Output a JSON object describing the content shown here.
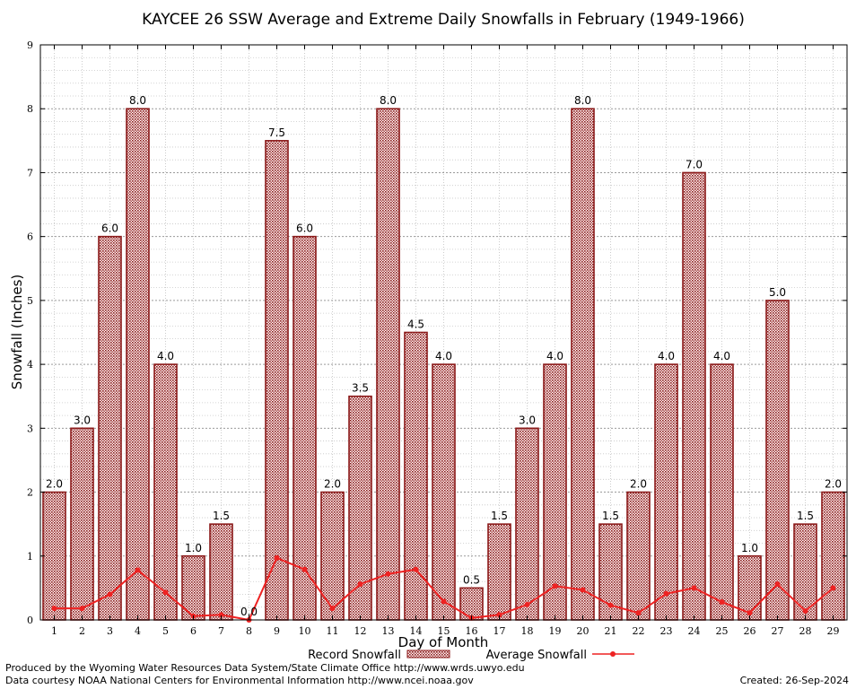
{
  "chart_data": {
    "type": "bar",
    "title": "KAYCEE 26 SSW Average and Extreme Daily Snowfalls in February (1949-1966)",
    "xlabel": "Day of Month",
    "ylabel": "Snowfall (Inches)",
    "ylim": [
      0,
      9
    ],
    "yticks": [
      0,
      1,
      2,
      3,
      4,
      5,
      6,
      7,
      8,
      9
    ],
    "categories": [
      "1",
      "2",
      "3",
      "4",
      "5",
      "6",
      "7",
      "8",
      "9",
      "10",
      "11",
      "12",
      "13",
      "14",
      "15",
      "16",
      "17",
      "18",
      "19",
      "20",
      "21",
      "22",
      "23",
      "24",
      "25",
      "26",
      "27",
      "28",
      "29"
    ],
    "series": [
      {
        "name": "Record Snowfall",
        "kind": "bar",
        "color": "#8b1a1a",
        "values": [
          2.0,
          3.0,
          6.0,
          8.0,
          4.0,
          1.0,
          1.5,
          0.0,
          7.5,
          6.0,
          2.0,
          3.5,
          8.0,
          4.5,
          4.0,
          0.5,
          1.5,
          3.0,
          4.0,
          8.0,
          1.5,
          2.0,
          4.0,
          7.0,
          4.0,
          1.0,
          5.0,
          1.5,
          2.0
        ],
        "labels": [
          "2.0",
          "3.0",
          "6.0",
          "8.0",
          "4.0",
          "1.0",
          "1.5",
          "0.0",
          "7.5",
          "6.0",
          "2.0",
          "3.5",
          "8.0",
          "4.5",
          "4.0",
          "0.5",
          "1.5",
          "3.0",
          "4.0",
          "8.0",
          "1.5",
          "2.0",
          "4.0",
          "7.0",
          "4.0",
          "1.0",
          "5.0",
          "1.5",
          "2.0"
        ]
      },
      {
        "name": "Average Snowfall",
        "kind": "line",
        "color": "#ee2222",
        "values": [
          0.18,
          0.18,
          0.4,
          0.78,
          0.43,
          0.06,
          0.08,
          0.0,
          0.97,
          0.79,
          0.18,
          0.56,
          0.72,
          0.79,
          0.29,
          0.03,
          0.08,
          0.24,
          0.53,
          0.47,
          0.23,
          0.11,
          0.41,
          0.5,
          0.28,
          0.11,
          0.56,
          0.14,
          0.5
        ]
      }
    ],
    "grid": true,
    "legend_position": "bottom"
  },
  "footer": {
    "produced_by": "Produced by the Wyoming Water Resources Data System/State Climate Office http://www.wrds.uwyo.edu",
    "courtesy": "Data courtesy NOAA National Centers for Environmental Information http://www.ncei.noaa.gov",
    "created": "Created:  26-Sep-2024"
  }
}
